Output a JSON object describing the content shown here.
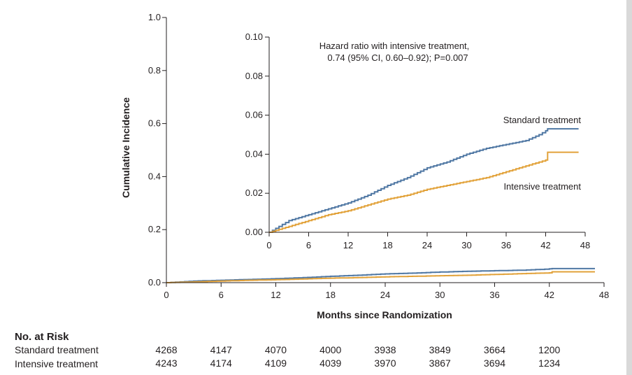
{
  "chart_data": [
    {
      "type": "line",
      "role": "main",
      "ylabel": "Cumulative Incidence",
      "xlabel": "Months since Randomization",
      "xlim": [
        0,
        48
      ],
      "ylim": [
        0,
        1.0
      ],
      "xticks": [
        "0",
        "6",
        "12",
        "18",
        "24",
        "30",
        "36",
        "42",
        "48"
      ],
      "yticks": [
        "0.0",
        "0.2",
        "0.4",
        "0.6",
        "0.8",
        "1.0"
      ],
      "series": [
        {
          "name": "Standard treatment",
          "color": "#4f77a3",
          "x": [
            0,
            1,
            3,
            6,
            9,
            12,
            15,
            18,
            21,
            24,
            27,
            30,
            33,
            36,
            39,
            41,
            42,
            42.3,
            47
          ],
          "y": [
            0,
            0.002,
            0.006,
            0.009,
            0.012,
            0.015,
            0.019,
            0.024,
            0.028,
            0.033,
            0.036,
            0.04,
            0.043,
            0.045,
            0.047,
            0.05,
            0.052,
            0.053,
            0.053
          ]
        },
        {
          "name": "Intensive treatment",
          "color": "#e2a23a",
          "x": [
            0,
            1,
            3,
            6,
            9,
            12,
            15,
            18,
            21,
            24,
            27,
            30,
            33,
            36,
            39,
            41,
            42,
            42.3,
            47
          ],
          "y": [
            0,
            0.001,
            0.003,
            0.006,
            0.009,
            0.011,
            0.014,
            0.017,
            0.019,
            0.022,
            0.024,
            0.026,
            0.028,
            0.031,
            0.034,
            0.036,
            0.037,
            0.041,
            0.041
          ]
        }
      ]
    },
    {
      "type": "line",
      "role": "inset",
      "xlim": [
        0,
        48
      ],
      "ylim": [
        0,
        0.1
      ],
      "xticks": [
        "0",
        "6",
        "12",
        "18",
        "24",
        "30",
        "36",
        "42",
        "48"
      ],
      "yticks": [
        "0.00",
        "0.02",
        "0.04",
        "0.06",
        "0.08",
        "0.10"
      ],
      "annotation": [
        "Hazard ratio with intensive treatment,",
        "0.74 (95% CI, 0.60–0.92); P=0.007"
      ],
      "series": [
        {
          "name": "Standard treatment",
          "label": "Standard treatment",
          "color": "#4f77a3",
          "x": [
            0,
            1,
            3,
            6,
            9,
            12,
            15,
            18,
            21,
            24,
            27,
            30,
            33,
            36,
            39,
            41,
            42,
            42.3,
            47
          ],
          "y": [
            0,
            0.002,
            0.006,
            0.009,
            0.012,
            0.015,
            0.019,
            0.024,
            0.028,
            0.033,
            0.036,
            0.04,
            0.043,
            0.045,
            0.047,
            0.05,
            0.052,
            0.053,
            0.053
          ]
        },
        {
          "name": "Intensive treatment",
          "label": "Intensive treatment",
          "color": "#e2a23a",
          "x": [
            0,
            1,
            3,
            6,
            9,
            12,
            15,
            18,
            21,
            24,
            27,
            30,
            33,
            36,
            39,
            41,
            42,
            42.3,
            47
          ],
          "y": [
            0,
            0.001,
            0.003,
            0.006,
            0.009,
            0.011,
            0.014,
            0.017,
            0.019,
            0.022,
            0.024,
            0.026,
            0.028,
            0.031,
            0.034,
            0.036,
            0.037,
            0.041,
            0.041
          ]
        }
      ]
    }
  ],
  "risk_table": {
    "title": "No. at Risk",
    "rows": [
      {
        "label": "Standard treatment",
        "values": [
          "4268",
          "4147",
          "4070",
          "4000",
          "3938",
          "3849",
          "3664",
          "1200"
        ]
      },
      {
        "label": "Intensive treatment",
        "values": [
          "4243",
          "4174",
          "4109",
          "4039",
          "3970",
          "3867",
          "3694",
          "1234"
        ]
      }
    ]
  }
}
